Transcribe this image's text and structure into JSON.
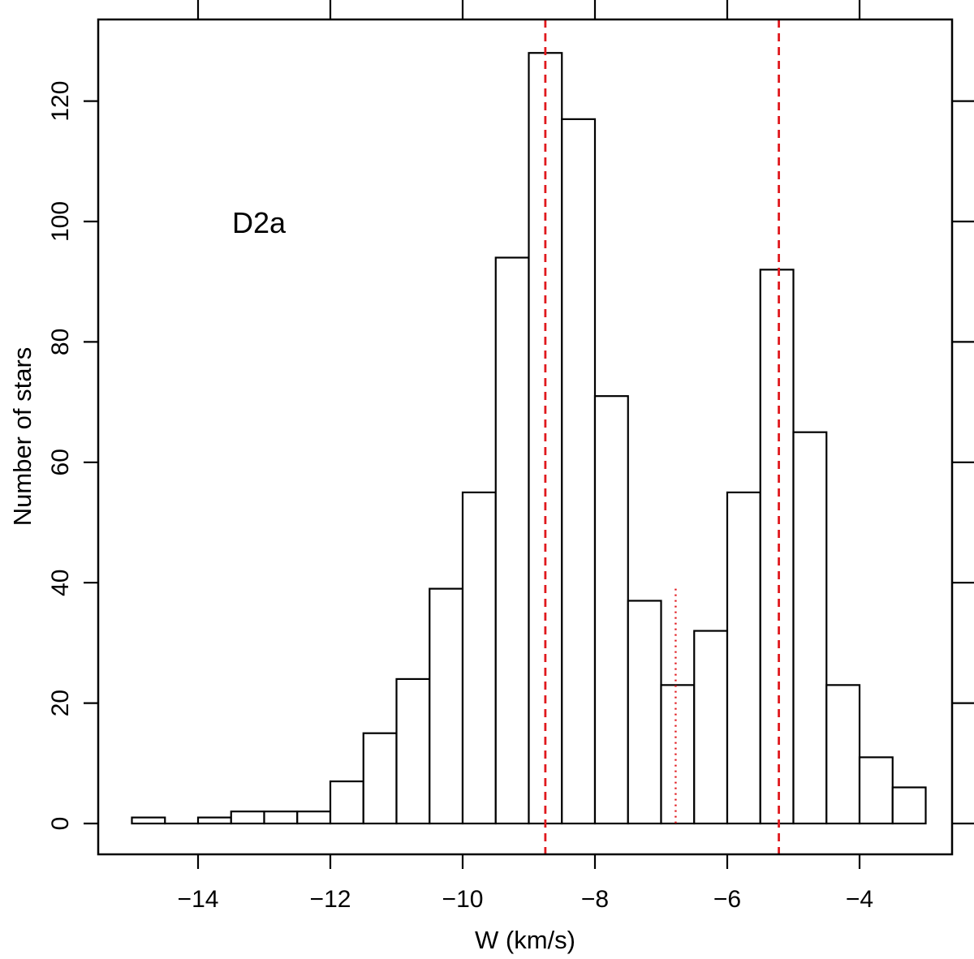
{
  "chart_data": {
    "type": "bar",
    "subtype": "histogram",
    "title": "",
    "annotation": "D2a",
    "xlabel": "W (km/s)",
    "ylabel": "Number of stars",
    "xlim": [
      -15.5,
      -2.5
    ],
    "ylim": [
      -5,
      134
    ],
    "x_ticks": [
      -14,
      -12,
      -10,
      -8,
      -6,
      -4
    ],
    "x_tick_labels": [
      "−14",
      "−12",
      "−10",
      "−8",
      "−6",
      "−4"
    ],
    "x_top_ticks": [
      -14,
      -12,
      -10,
      -8,
      -6,
      -4
    ],
    "y_ticks": [
      0,
      20,
      40,
      60,
      80,
      100,
      120
    ],
    "y_tick_labels": [
      "0",
      "20",
      "40",
      "60",
      "80",
      "100",
      "120"
    ],
    "bin_width": 0.5,
    "bin_starts": [
      -15,
      -14.5,
      -14,
      -13.5,
      -13,
      -12.5,
      -12,
      -11.5,
      -11,
      -10.5,
      -10,
      -9.5,
      -9,
      -8.5,
      -8,
      -7.5,
      -7,
      -6.5,
      -6,
      -5.5,
      -5,
      -4.5,
      -4,
      -3.5
    ],
    "counts": [
      1,
      0,
      1,
      2,
      2,
      2,
      7,
      15,
      24,
      39,
      55,
      94,
      128,
      117,
      71,
      37,
      23,
      32,
      55,
      92,
      65,
      23,
      11,
      6
    ],
    "reference_lines": [
      {
        "x": -8.75,
        "style": "dashed",
        "color": "#e0191e",
        "y_top": "full"
      },
      {
        "x": -5.22,
        "style": "dashed",
        "color": "#e0191e",
        "y_top": "full"
      },
      {
        "x": -6.78,
        "style": "dotted",
        "color": "#e0191e",
        "y_top": 39
      }
    ],
    "grid": false,
    "bar_fill": "#ffffff",
    "bar_stroke": "#000000"
  }
}
